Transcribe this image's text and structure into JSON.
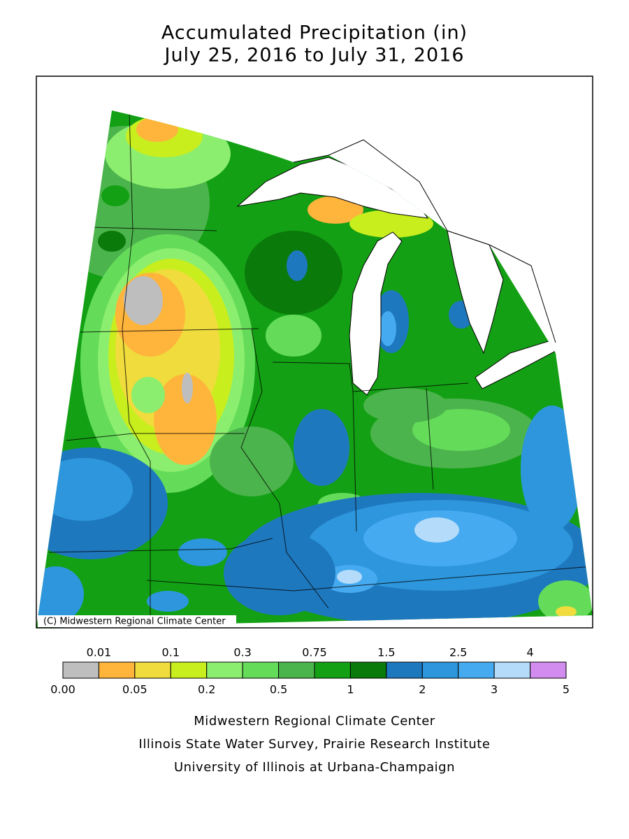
{
  "header": {
    "title": "Accumulated Precipitation (in)",
    "subtitle": "July 25, 2016 to July 31, 2016"
  },
  "map": {
    "credit": "(C) Midwestern Regional Climate Center"
  },
  "legend": {
    "top_labels": [
      "0.01",
      "0.1",
      "0.3",
      "0.75",
      "1.5",
      "2.5",
      "4"
    ],
    "bottom_labels": [
      "0.00",
      "0.05",
      "0.2",
      "0.5",
      "1",
      "2",
      "3",
      "5"
    ],
    "colors": [
      "#bebebe",
      "#ffb43c",
      "#f0dc3c",
      "#c8ee1e",
      "#8cee6e",
      "#64dc5a",
      "#4cb44c",
      "#14a014",
      "#0a7a0a",
      "#1e78be",
      "#2d96dc",
      "#46aaf0",
      "#b4dcfa",
      "#d28cf0"
    ]
  },
  "footer": {
    "lines": [
      "Midwestern Regional Climate Center",
      "Illinois State Water Survey, Prairie Research Institute",
      "University of Illinois at Urbana-Champaign"
    ]
  }
}
